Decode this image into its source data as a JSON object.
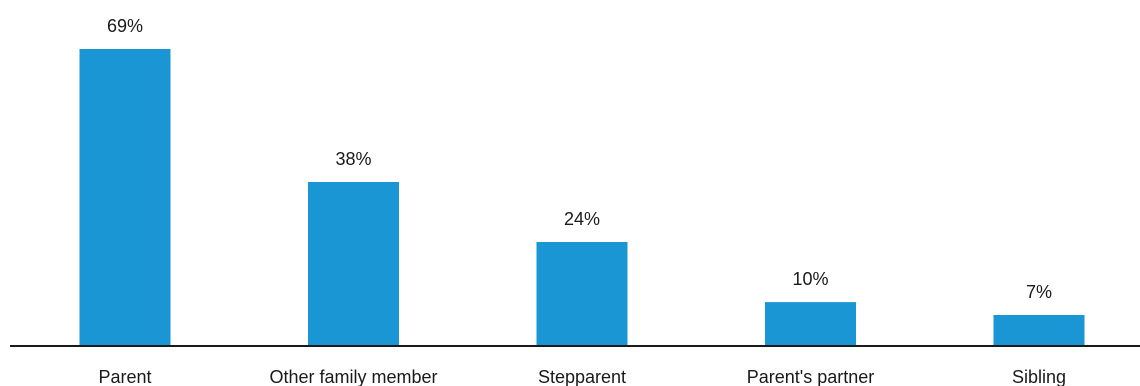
{
  "chart_data": {
    "type": "bar",
    "categories": [
      "Parent",
      "Other family member",
      "Stepparent",
      "Parent's partner",
      "Sibling"
    ],
    "values": [
      69,
      38,
      24,
      10,
      7
    ],
    "value_labels": [
      "69%",
      "38%",
      "24%",
      "10%",
      "7%"
    ],
    "title": "",
    "xlabel": "",
    "ylabel": "",
    "ylim": [
      0,
      69
    ],
    "grid": false,
    "legend": "none",
    "colors": {
      "bar": "#1a96d4",
      "baseline": "#1a1a1a",
      "text": "#1a1a1a"
    }
  }
}
